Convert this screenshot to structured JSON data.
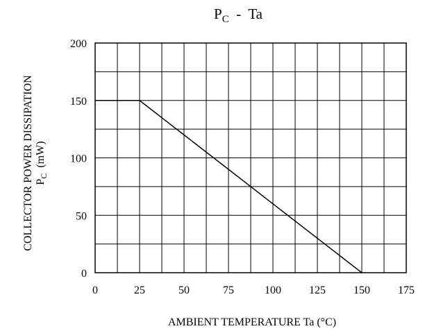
{
  "chart_data": {
    "type": "line",
    "title_main": "P",
    "title_sub": "C",
    "title_rest": "  -  Ta",
    "xlabel": "AMBIENT TEMPERATURE Ta  (°C)",
    "ylabel_line1": "COLLECTOR POWER DISSIPATION",
    "ylabel_line2_main": "P",
    "ylabel_line2_sub": "C",
    "ylabel_line2_rest": "  (mW)",
    "xlim": [
      0,
      175
    ],
    "ylim": [
      0,
      200
    ],
    "x_ticks": [
      0,
      25,
      50,
      75,
      100,
      125,
      150,
      175
    ],
    "y_ticks": [
      0,
      50,
      100,
      150,
      200
    ],
    "x_minor_step": 12.5,
    "y_minor_step": 25,
    "grid": true,
    "series": [
      {
        "x": [
          0,
          25,
          150
        ],
        "y": [
          150,
          150,
          0
        ]
      }
    ],
    "line_color": "#000000",
    "grid_color": "#000000"
  }
}
